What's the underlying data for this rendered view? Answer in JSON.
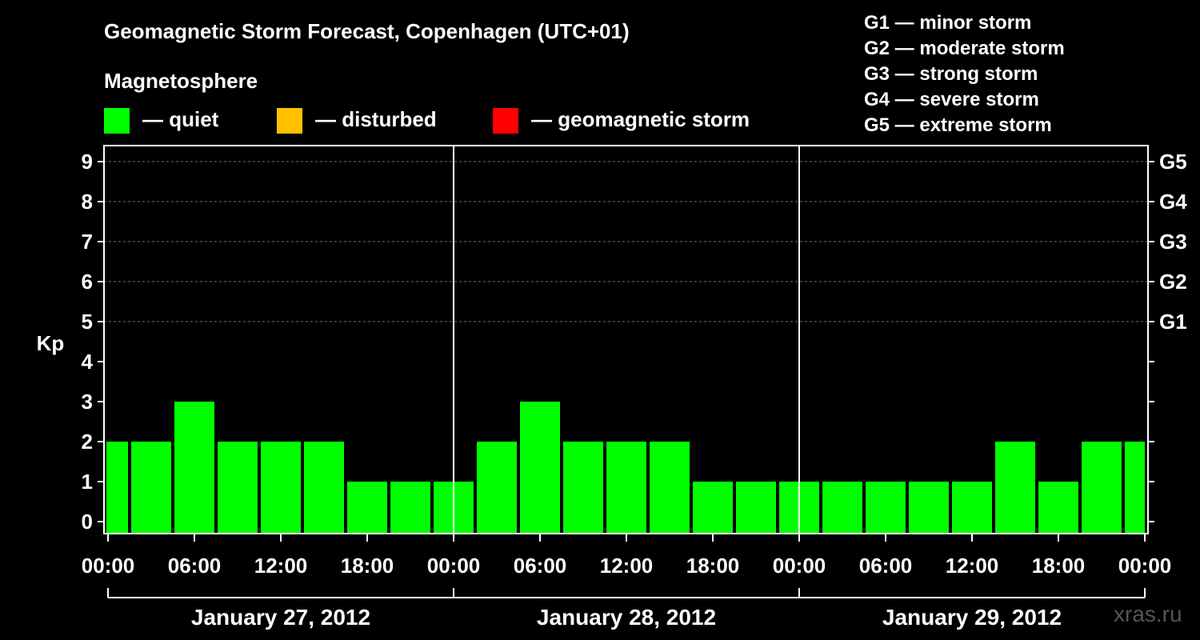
{
  "title": "Geomagnetic Storm Forecast, Copenhagen (UTC+01)",
  "subtitle": "Magnetosphere",
  "legend": [
    {
      "label": "— quiet",
      "color": "#00ff00"
    },
    {
      "label": "— disturbed",
      "color": "#ffc000"
    },
    {
      "label": "— geomagnetic storm",
      "color": "#ff0000"
    }
  ],
  "g_scale": [
    "G1 — minor storm",
    "G2 — moderate storm",
    "G3 — strong storm",
    "G4 — severe storm",
    "G5 — extreme storm"
  ],
  "watermark": "xras.ru",
  "chart_data": {
    "type": "bar",
    "ylabel": "Kp",
    "ylim": [
      0,
      9
    ],
    "yticks": [
      0,
      1,
      2,
      3,
      4,
      5,
      6,
      7,
      8,
      9
    ],
    "right_axis": [
      {
        "kp": 5,
        "label": "G1"
      },
      {
        "kp": 6,
        "label": "G2"
      },
      {
        "kp": 7,
        "label": "G3"
      },
      {
        "kp": 8,
        "label": "G4"
      },
      {
        "kp": 9,
        "label": "G5"
      }
    ],
    "xtick_labels": [
      "00:00",
      "06:00",
      "12:00",
      "18:00",
      "00:00",
      "06:00",
      "12:00",
      "18:00",
      "00:00",
      "06:00",
      "12:00",
      "18:00",
      "00:00"
    ],
    "days": [
      "January 27, 2012",
      "January 28, 2012",
      "January 29, 2012"
    ],
    "interval_hours": 3,
    "series": [
      {
        "values": [
          2,
          2,
          3,
          2,
          2,
          2,
          1,
          1,
          1,
          2,
          3,
          2,
          2,
          2,
          1,
          1,
          1,
          1,
          1,
          1,
          1,
          2,
          1,
          2,
          2
        ]
      }
    ],
    "bar_color": "#00ff00",
    "grid": true
  }
}
